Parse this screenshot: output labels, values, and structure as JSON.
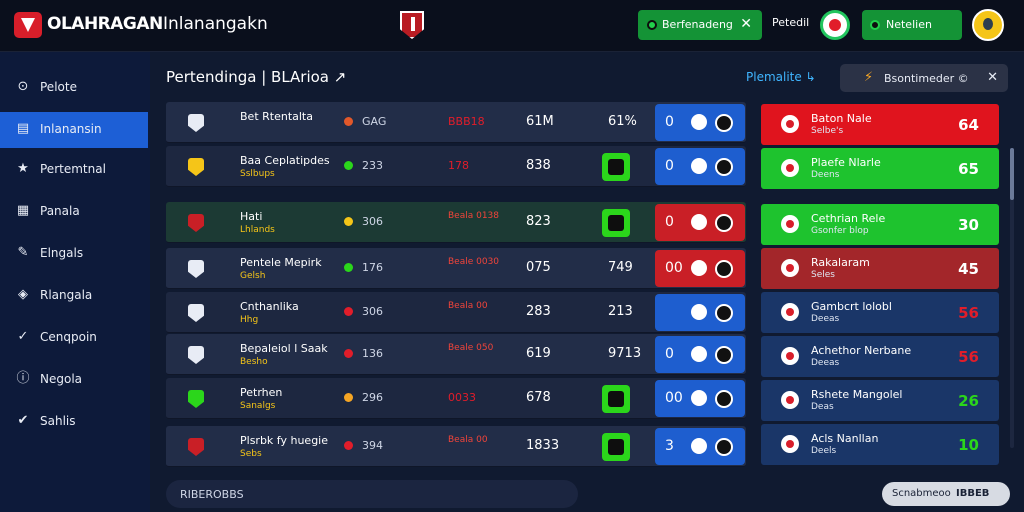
{
  "header": {
    "brand": "OLAHRAGAN",
    "title": "Inlanangakn",
    "notification": {
      "text": "Berfenadeng",
      "close": "✕"
    },
    "user_label": "Petedil",
    "status_button": "Netelien"
  },
  "sidebar": {
    "items": [
      {
        "label": "Pelote",
        "icon": "home-icon",
        "glyph": "⊙"
      },
      {
        "label": "Inlanansin",
        "icon": "calendar-icon",
        "glyph": "▤",
        "active": true
      },
      {
        "label": "Pertemtnal",
        "icon": "star-icon",
        "glyph": "★"
      },
      {
        "label": "Panala",
        "icon": "grid-icon",
        "glyph": "▦"
      },
      {
        "label": "Elngals",
        "icon": "edit-icon",
        "glyph": "✎"
      },
      {
        "label": "Rlangala",
        "icon": "shield-icon",
        "glyph": "◈"
      },
      {
        "label": "Cenqpoin",
        "icon": "check-icon",
        "glyph": "✓"
      },
      {
        "label": "Negola",
        "icon": "info-icon",
        "glyph": "ⓘ"
      },
      {
        "label": "Sahlis",
        "icon": "check-circle-icon",
        "glyph": "✔"
      }
    ]
  },
  "main": {
    "title": "Pertendinga | BLArioa ↗",
    "filter_link": "Plemalite ↳",
    "search": {
      "text": "Bsontimeder ©",
      "close": "✕"
    },
    "rows": [
      {
        "name": "Bet Rtentalta",
        "sub": "",
        "c1": "GAG",
        "c2": "BBB18",
        "c3": "61M",
        "c4": "61%",
        "score": "0",
        "score_color": "blue",
        "pill": "#e2582a",
        "icon": "#e8ecf5",
        "style": "alt"
      },
      {
        "name": "Baa Ceplatipdes",
        "sub": "Sslbups",
        "c1": "233",
        "c2": "178",
        "c3": "838",
        "c4": "",
        "chip": true,
        "score": "0",
        "score_color": "blue",
        "pill": "#2bd61b",
        "icon": "#f5c518",
        "style": ""
      },
      {
        "name": "Hati",
        "sub": "Lhlands",
        "c1": "306",
        "c2": "Beala 0138",
        "c3": "823",
        "c4": "",
        "chip": true,
        "score": "0",
        "score_color": "red",
        "pill": "#f5c518",
        "icon": "#c91f26",
        "style": "hl"
      },
      {
        "name": "Pentele Mepirk",
        "sub": "Gelsh",
        "c1": "176",
        "c2": "Beale 0030",
        "c3": "075",
        "c4": "749",
        "score": "00",
        "score_color": "red",
        "pill": "#2bd61b",
        "icon": "#e8ecf5",
        "style": "alt"
      },
      {
        "name": "Cnthanlika",
        "sub": "Hhg",
        "c1": "306",
        "c2": "Beala 00",
        "c3": "283",
        "c4": "213",
        "score": "",
        "score_color": "blue",
        "pill": "#e11d2a",
        "icon": "#e8ecf5",
        "style": ""
      },
      {
        "name": "Bepaleiol l Saak",
        "sub": "Besho",
        "c1": "136",
        "c2": "Beale 050",
        "c3": "619",
        "c4": "9713",
        "score": "0",
        "score_color": "blue",
        "pill": "#e11d2a",
        "icon": "#e8ecf5",
        "style": "alt"
      },
      {
        "name": "Petrhen",
        "sub": "Sanalgs",
        "c1": "296",
        "c2": "0033",
        "c3": "678",
        "c4": "",
        "chip": true,
        "score": "00",
        "score_color": "blue",
        "pill": "#f5a524",
        "icon": "#2bd61b",
        "style": ""
      },
      {
        "name": "Plsrbk fy huegie",
        "sub": "Sebs",
        "c1": "394",
        "c2": "Beala 00",
        "c3": "1833",
        "c4": "",
        "chip": true,
        "score": "3",
        "score_color": "blue",
        "pill": "#e11d2a",
        "icon": "#c91f26",
        "style": "alt"
      }
    ],
    "cards": [
      {
        "name": "Baton Nale",
        "sub": "Selbe's",
        "value": "64",
        "color": "red",
        "value_color": "#ffffff"
      },
      {
        "name": "Plaefe Nlarle",
        "sub": "Deens",
        "value": "65",
        "color": "green",
        "value_color": "#ffffff"
      },
      {
        "name": "Cethrian Rele",
        "sub": "Gsonfer blop",
        "value": "30",
        "color": "green",
        "value_color": "#ffffff"
      },
      {
        "name": "Rakalaram",
        "sub": "Seles",
        "value": "45",
        "color": "dred",
        "value_color": "#ffffff"
      },
      {
        "name": "Gambcrt lolobl",
        "sub": "Deeas",
        "value": "56",
        "color": "navy",
        "value_color": "#e11d2a"
      },
      {
        "name": "Achethor Nerbane",
        "sub": "Deeas",
        "value": "56",
        "color": "navy",
        "value_color": "#e11d2a"
      },
      {
        "name": "Rshete Mangolel",
        "sub": "Deas",
        "value": "26",
        "color": "navy",
        "value_color": "#2bd61b"
      },
      {
        "name": "Acls Nanllan",
        "sub": "Deels",
        "value": "10",
        "color": "navy",
        "value_color": "#2bd61b"
      }
    ],
    "footer_text": "RIBEROBBS",
    "pager": {
      "left": "Scnabmeoo",
      "right": "IBBEB"
    }
  }
}
